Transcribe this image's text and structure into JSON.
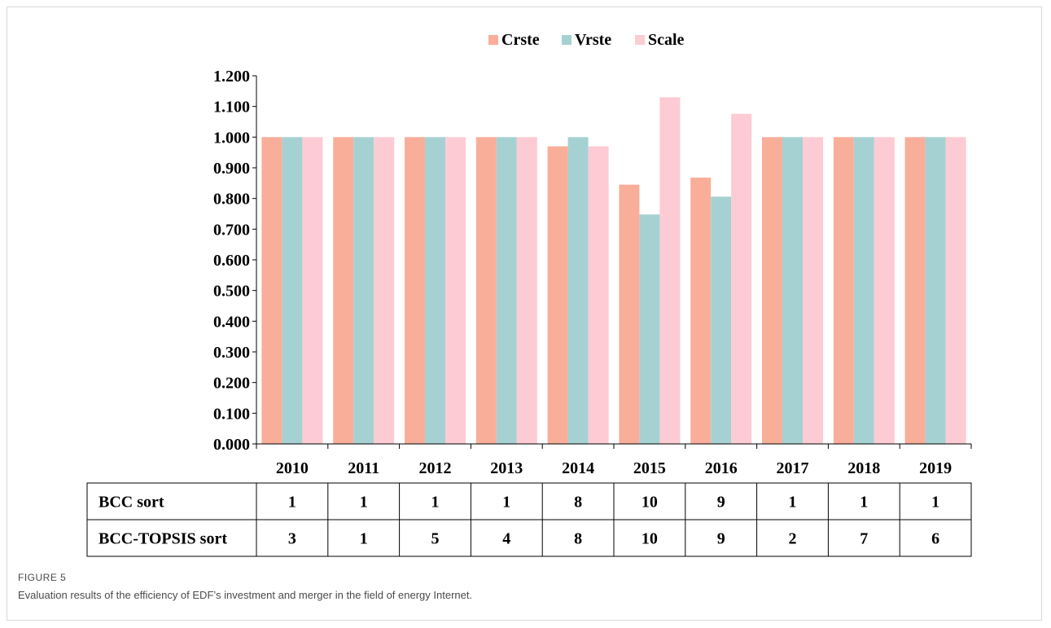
{
  "chart_data": {
    "type": "bar",
    "categories": [
      "2010",
      "2011",
      "2012",
      "2013",
      "2014",
      "2015",
      "2016",
      "2017",
      "2018",
      "2019"
    ],
    "series": [
      {
        "name": "Crste",
        "color": "#f9ae9a",
        "values": [
          1.0,
          1.0,
          1.0,
          1.0,
          0.97,
          0.845,
          0.868,
          1.0,
          1.0,
          1.0
        ]
      },
      {
        "name": "Vrste",
        "color": "#a6d1d2",
        "values": [
          1.0,
          1.0,
          1.0,
          1.0,
          1.0,
          0.748,
          0.806,
          1.0,
          1.0,
          1.0
        ]
      },
      {
        "name": "Scale",
        "color": "#fdcbd4",
        "values": [
          1.0,
          1.0,
          1.0,
          1.0,
          0.97,
          1.13,
          1.076,
          1.0,
          1.0,
          1.0
        ]
      }
    ],
    "ylim": [
      0,
      1.2
    ],
    "yticks": [
      "0.000",
      "0.100",
      "0.200",
      "0.300",
      "0.400",
      "0.500",
      "0.600",
      "0.700",
      "0.800",
      "0.900",
      "1.000",
      "1.100",
      "1.200"
    ],
    "legend_position": "top-center",
    "grid": false,
    "table": {
      "rows": [
        {
          "label": "BCC sort",
          "values": [
            "1",
            "1",
            "1",
            "1",
            "8",
            "10",
            "9",
            "1",
            "1",
            "1"
          ]
        },
        {
          "label": "BCC-TOPSIS sort",
          "values": [
            "3",
            "1",
            "5",
            "4",
            "8",
            "10",
            "9",
            "2",
            "7",
            "6"
          ]
        }
      ]
    }
  },
  "caption": {
    "label": "FIGURE 5",
    "text": "Evaluation results of the efficiency of EDF’s investment and merger in the field of energy Internet."
  }
}
